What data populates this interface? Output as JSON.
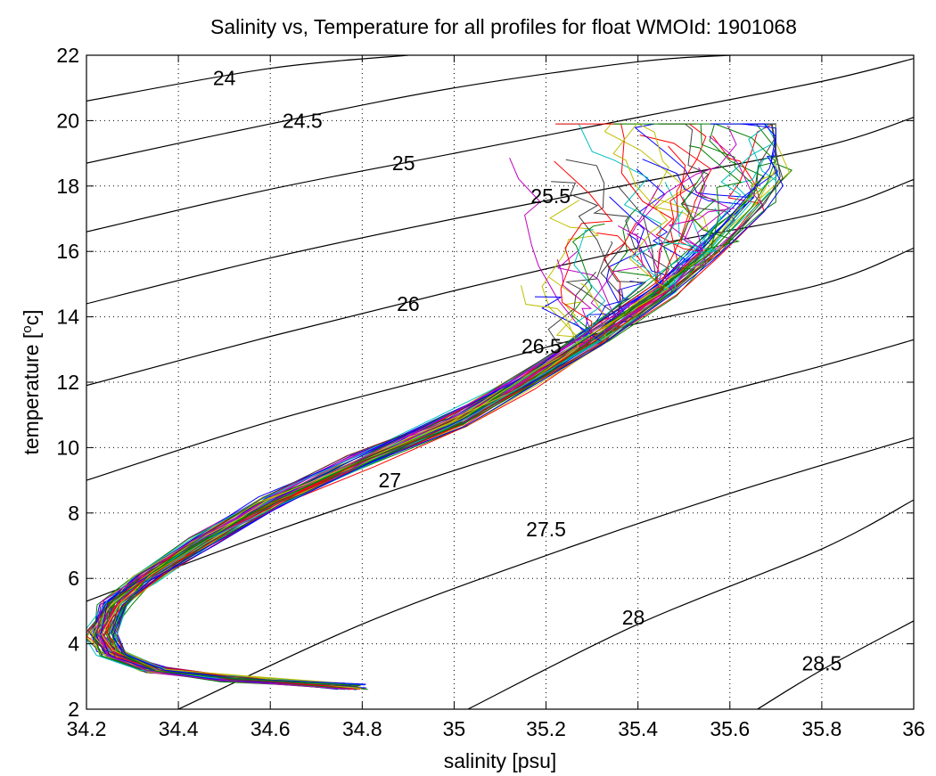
{
  "chart_data": {
    "type": "line",
    "title": "Salinity vs, Temperature for all profiles for float WMOId: 1901068",
    "xlabel": "salinity [psu]",
    "ylabel_base": "temperature [",
    "ylabel_sup": "o",
    "ylabel_end": "c]",
    "xlim": [
      34.2,
      36
    ],
    "ylim": [
      2,
      22
    ],
    "x_ticks": [
      "34.2",
      "34.4",
      "34.6",
      "34.8",
      "35",
      "35.2",
      "35.4",
      "35.6",
      "35.8",
      "36"
    ],
    "y_ticks": [
      "2",
      "4",
      "6",
      "8",
      "10",
      "12",
      "14",
      "16",
      "18",
      "20",
      "22"
    ],
    "grid": true,
    "grid_style": "dotted",
    "density_contours": [
      {
        "label": "24",
        "label_at": [
          34.5,
          21.3
        ],
        "points": [
          [
            34.2,
            20.6
          ],
          [
            34.6,
            21.6
          ],
          [
            34.9,
            22.0
          ]
        ]
      },
      {
        "label": "24.5",
        "label_at": [
          34.67,
          20.0
        ],
        "points": [
          [
            34.2,
            18.7
          ],
          [
            34.6,
            19.9
          ],
          [
            35.0,
            21.0
          ],
          [
            35.4,
            21.8
          ],
          [
            35.6,
            22.0
          ]
        ]
      },
      {
        "label": "25",
        "label_at": [
          34.89,
          18.7
        ],
        "points": [
          [
            34.2,
            16.6
          ],
          [
            34.6,
            17.9
          ],
          [
            35.0,
            19.0
          ],
          [
            35.4,
            20.1
          ],
          [
            35.8,
            21.2
          ],
          [
            36.0,
            21.9
          ]
        ]
      },
      {
        "label": "25.5",
        "label_at": [
          35.21,
          17.7
        ],
        "points": [
          [
            34.2,
            14.4
          ],
          [
            34.6,
            15.8
          ],
          [
            35.0,
            17.0
          ],
          [
            35.4,
            18.1
          ],
          [
            35.8,
            19.2
          ],
          [
            36.0,
            20.1
          ]
        ]
      },
      {
        "label": "26",
        "label_at": [
          34.9,
          14.4
        ],
        "points": [
          [
            34.2,
            11.9
          ],
          [
            34.6,
            13.4
          ],
          [
            35.0,
            14.8
          ],
          [
            35.4,
            16.1
          ],
          [
            35.8,
            17.2
          ],
          [
            36.0,
            18.2
          ]
        ]
      },
      {
        "label": "26.5",
        "label_at": [
          35.19,
          13.1
        ],
        "points": [
          [
            34.2,
            9.0
          ],
          [
            34.6,
            10.8
          ],
          [
            35.0,
            12.3
          ],
          [
            35.4,
            13.8
          ],
          [
            35.8,
            15.0
          ],
          [
            36.0,
            16.1
          ]
        ]
      },
      {
        "label": "27",
        "label_at": [
          34.86,
          9.0
        ],
        "points": [
          [
            34.2,
            5.3
          ],
          [
            34.6,
            7.4
          ],
          [
            35.0,
            9.3
          ],
          [
            35.4,
            11.0
          ],
          [
            35.8,
            12.5
          ],
          [
            36.0,
            13.3
          ]
        ]
      },
      {
        "label": "27.5",
        "label_at": [
          35.2,
          7.5
        ],
        "points": [
          [
            34.4,
            2.0
          ],
          [
            34.8,
            4.6
          ],
          [
            35.2,
            6.7
          ],
          [
            35.6,
            8.6
          ],
          [
            36.0,
            10.3
          ]
        ]
      },
      {
        "label": "28",
        "label_at": [
          35.39,
          4.8
        ],
        "points": [
          [
            35.03,
            2.0
          ],
          [
            35.4,
            4.6
          ],
          [
            35.8,
            6.9
          ],
          [
            36.0,
            8.4
          ]
        ]
      },
      {
        "label": "28.5",
        "label_at": [
          35.8,
          3.4
        ],
        "points": [
          [
            35.66,
            2.0
          ],
          [
            35.8,
            3.2
          ],
          [
            36.0,
            4.7
          ]
        ]
      }
    ],
    "series_colors": [
      "#0000ff",
      "#008000",
      "#ff0000",
      "#00bfbf",
      "#bf00bf",
      "#bfbf00",
      "#404040"
    ],
    "profile_count": 72,
    "profile_backbone": [
      [
        34.78,
        2.7
      ],
      [
        34.5,
        2.95
      ],
      [
        34.35,
        3.2
      ],
      [
        34.26,
        3.7
      ],
      [
        34.23,
        4.3
      ],
      [
        34.26,
        5.2
      ],
      [
        34.33,
        6.0
      ],
      [
        34.45,
        7.1
      ],
      [
        34.6,
        8.3
      ],
      [
        34.8,
        9.6
      ],
      [
        35.0,
        10.8
      ],
      [
        35.15,
        12.0
      ],
      [
        35.3,
        13.3
      ],
      [
        35.45,
        14.8
      ],
      [
        35.55,
        16.0
      ],
      [
        35.65,
        17.5
      ],
      [
        35.7,
        18.3
      ]
    ]
  }
}
